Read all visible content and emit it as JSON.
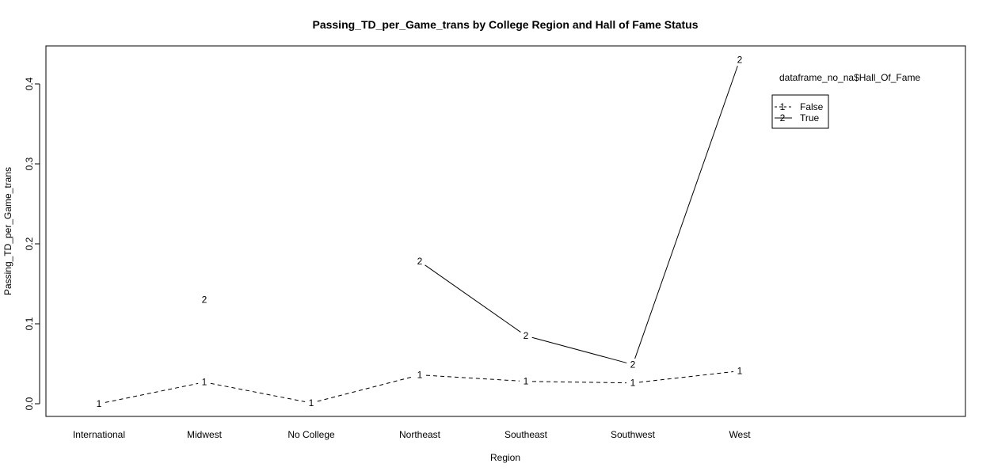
{
  "chart_data": {
    "type": "line",
    "title": "Passing_TD_per_Game_trans by College Region and Hall of Fame Status",
    "xlabel": "Region",
    "ylabel": "Passing_TD_per_Game_trans",
    "categories": [
      "International",
      "Midwest",
      "No College",
      "Northeast",
      "Southeast",
      "Southwest",
      "West"
    ],
    "ylim": [
      -0.015,
      0.45
    ],
    "yticks": [
      "0.0",
      "0.1",
      "0.2",
      "0.3",
      "0.4"
    ],
    "grid": false,
    "legend": {
      "title": "dataframe_no_na$Hall_Of_Fame",
      "placement": "top-right",
      "entries": [
        {
          "symbol": "1",
          "label": "False",
          "style": "dashed"
        },
        {
          "symbol": "2",
          "label": "True",
          "style": "solid"
        }
      ]
    },
    "series": [
      {
        "name": "False",
        "symbol": "1",
        "style": "dashed",
        "values": [
          0.0,
          0.027,
          0.001,
          0.036,
          0.028,
          0.026,
          0.041
        ]
      },
      {
        "name": "True",
        "symbol": "2",
        "style": "solid",
        "values": [
          null,
          0.13,
          null,
          0.178,
          0.085,
          0.049,
          0.43
        ]
      }
    ],
    "colors": {
      "line": "#000000",
      "background": "#ffffff"
    }
  }
}
